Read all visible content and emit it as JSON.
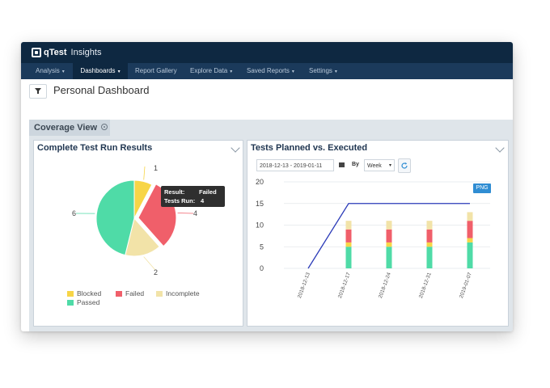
{
  "app": {
    "brand": "qTest",
    "product": "Insights"
  },
  "nav": [
    {
      "label": "Analysis",
      "caret": "▾",
      "active": false
    },
    {
      "label": "Dashboards",
      "caret": "▾",
      "active": true
    },
    {
      "label": "Report Gallery",
      "caret": "",
      "active": false
    },
    {
      "label": "Explore Data",
      "caret": "▾",
      "active": false
    },
    {
      "label": "Saved Reports",
      "caret": "▾",
      "active": false
    },
    {
      "label": "Settings",
      "caret": "▾",
      "active": false
    }
  ],
  "page": {
    "title": "Personal Dashboard",
    "section": "Coverage View"
  },
  "colors": {
    "header": "#0e2841",
    "nav": "#1b3a5b",
    "blocked": "#f7d547",
    "failed": "#f05f6a",
    "incomplete": "#f2e3a8",
    "passed": "#4fdba7",
    "line": "#2b3bb8",
    "accent": "#2f8dd3"
  },
  "pie_panel": {
    "title": "Complete Test Run Results",
    "tooltip": {
      "result_label": "Result:",
      "result_value": "Failed",
      "runs_label": "Tests Run:",
      "runs_value": "4"
    }
  },
  "bar_panel": {
    "title": "Tests Planned vs. Executed",
    "date_range": "2018-12-13 - 2019-01-11",
    "by_label": "By",
    "period": "Week",
    "export_label": "PNG"
  },
  "chart_data": [
    {
      "type": "pie",
      "title": "Complete Test Run Results",
      "categories": [
        "Blocked",
        "Failed",
        "Incomplete",
        "Passed"
      ],
      "values": [
        1,
        4,
        2,
        6
      ],
      "legend": [
        "Blocked",
        "Failed",
        "Incomplete",
        "Passed"
      ],
      "legend_position": "bottom"
    },
    {
      "type": "bar",
      "title": "Tests Planned vs. Executed",
      "x": [
        "2018-12-13",
        "2018-12-17",
        "2018-12-24",
        "2018-12-31",
        "2019-01-07"
      ],
      "y_ticks": [
        0,
        5,
        10,
        15,
        20
      ],
      "ylim": [
        0,
        20
      ],
      "stacked": true,
      "series": [
        {
          "values": [
            0,
            5,
            5,
            5,
            6
          ]
        },
        {
          "values": [
            0,
            1,
            1,
            1,
            1
          ]
        },
        {
          "values": [
            0,
            3,
            3,
            3,
            4
          ]
        },
        {
          "values": [
            0,
            2,
            2,
            2,
            2
          ]
        }
      ],
      "line": {
        "values": [
          0,
          15,
          15,
          15,
          15
        ]
      },
      "grid": true
    }
  ]
}
